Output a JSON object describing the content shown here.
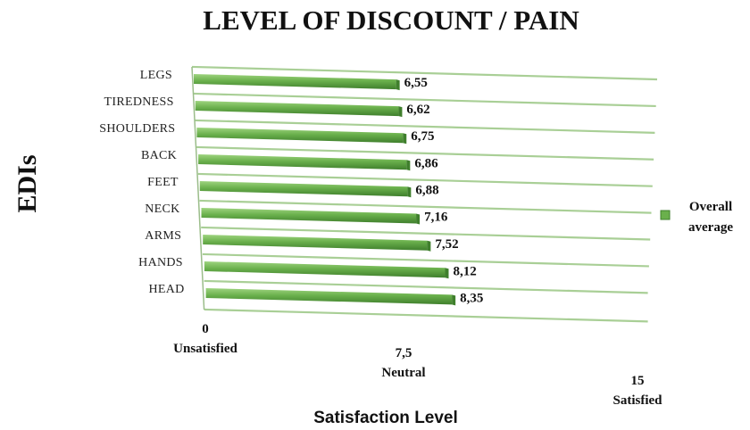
{
  "chart_data": {
    "type": "bar",
    "orientation": "horizontal",
    "title": "LEVEL OF DISCOUNT / PAIN",
    "ylabel": "EDIs",
    "xlabel": "Satisfaction Level",
    "categories": [
      "LEGS",
      "TIREDNESS",
      "SHOULDERS",
      "BACK",
      "FEET",
      "NECK",
      "ARMS",
      "HANDS",
      "HEAD"
    ],
    "series": [
      {
        "name": "Overall average",
        "values": [
          6.55,
          6.62,
          6.75,
          6.86,
          6.88,
          7.16,
          7.52,
          8.12,
          8.35
        ],
        "value_labels": [
          "6,55",
          "6,62",
          "6,75",
          "6,86",
          "6,88",
          "7,16",
          "7,52",
          "8,12",
          "8,35"
        ]
      }
    ],
    "xlim": [
      0,
      15
    ],
    "x_ticks": [
      {
        "value": 0,
        "label": "0",
        "sublabel": "Unsatisfied"
      },
      {
        "value": 7.5,
        "label": "7,5",
        "sublabel": "Neutral"
      },
      {
        "value": 15,
        "label": "15",
        "sublabel": "Satisfied"
      }
    ],
    "legend": {
      "position": "right",
      "label_lines": [
        "Overall",
        "average"
      ]
    },
    "grid": true,
    "perspective": "3d-tilted",
    "colors": {
      "bar": "#6ab04c",
      "bar_dark": "#3f7f2c",
      "bar_light": "#9ed47f",
      "grid": "#a9cf96"
    }
  }
}
